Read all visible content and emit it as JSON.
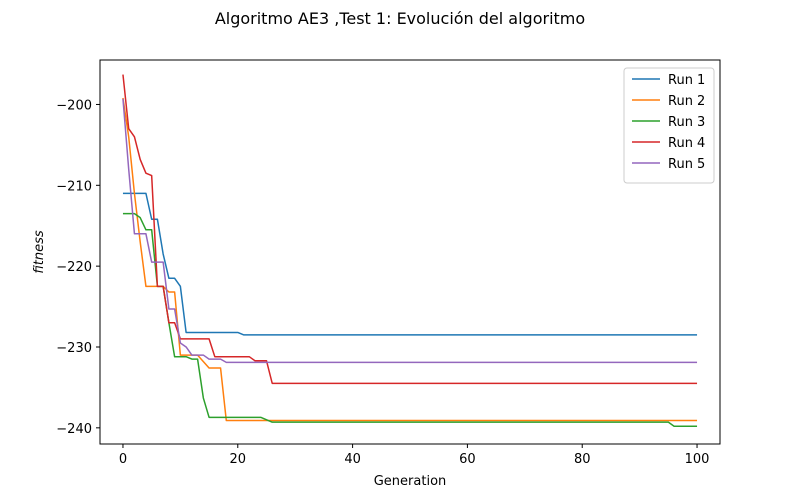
{
  "chart_data": {
    "type": "line",
    "title": "Algoritmo AE3 ,Test 1: Evolución del algoritmo",
    "xlabel": "Generation",
    "ylabel": "fitness",
    "xlim": [
      -4,
      104
    ],
    "ylim": [
      -242,
      -194.5
    ],
    "xticks": [
      0,
      20,
      40,
      60,
      80,
      100
    ],
    "yticks": [
      -200,
      -210,
      -220,
      -230,
      -240
    ],
    "xtick_labels": [
      "0",
      "20",
      "40",
      "60",
      "80",
      "100"
    ],
    "ytick_labels": [
      "−200",
      "−210",
      "−220",
      "−230",
      "−240"
    ],
    "grid": false,
    "legend": "top-right",
    "series": [
      {
        "name": "Run 1",
        "color": "#1f77b4",
        "points": [
          [
            0,
            -211
          ],
          [
            4,
            -211
          ],
          [
            5,
            -214.2
          ],
          [
            6,
            -214.2
          ],
          [
            7,
            -218.5
          ],
          [
            8,
            -221.5
          ],
          [
            9,
            -221.5
          ],
          [
            10,
            -222.5
          ],
          [
            11,
            -228.2
          ],
          [
            20,
            -228.2
          ],
          [
            21,
            -228.5
          ],
          [
            100,
            -228.5
          ]
        ]
      },
      {
        "name": "Run 2",
        "color": "#ff7f0e",
        "points": [
          [
            0,
            -199.2
          ],
          [
            1,
            -204
          ],
          [
            2,
            -211
          ],
          [
            3,
            -217
          ],
          [
            4,
            -222.5
          ],
          [
            6,
            -222.5
          ],
          [
            7,
            -222.5
          ],
          [
            8,
            -223.2
          ],
          [
            9,
            -223.2
          ],
          [
            10,
            -231
          ],
          [
            13,
            -231
          ],
          [
            15,
            -232.6
          ],
          [
            17,
            -232.6
          ],
          [
            18,
            -239.1
          ],
          [
            100,
            -239.1
          ]
        ]
      },
      {
        "name": "Run 3",
        "color": "#2ca02c",
        "points": [
          [
            0,
            -213.5
          ],
          [
            2,
            -213.5
          ],
          [
            3,
            -214
          ],
          [
            4,
            -215.5
          ],
          [
            5,
            -215.5
          ],
          [
            6,
            -222.5
          ],
          [
            7,
            -222.5
          ],
          [
            8,
            -227
          ],
          [
            9,
            -231.2
          ],
          [
            11,
            -231.2
          ],
          [
            12,
            -231.5
          ],
          [
            13,
            -231.5
          ],
          [
            14,
            -236.3
          ],
          [
            15,
            -238.7
          ],
          [
            24,
            -238.7
          ],
          [
            26,
            -239.3
          ],
          [
            95,
            -239.3
          ],
          [
            96,
            -239.8
          ],
          [
            100,
            -239.8
          ]
        ]
      },
      {
        "name": "Run 4",
        "color": "#d62728",
        "points": [
          [
            0,
            -196.3
          ],
          [
            1,
            -203
          ],
          [
            2,
            -204
          ],
          [
            3,
            -206.8
          ],
          [
            4,
            -208.5
          ],
          [
            5,
            -208.8
          ],
          [
            6,
            -222.5
          ],
          [
            7,
            -222.5
          ],
          [
            8,
            -227
          ],
          [
            9,
            -227
          ],
          [
            10,
            -229
          ],
          [
            15,
            -229
          ],
          [
            16,
            -231.2
          ],
          [
            22,
            -231.2
          ],
          [
            23,
            -231.7
          ],
          [
            25,
            -231.7
          ],
          [
            26,
            -234.5
          ],
          [
            100,
            -234.5
          ]
        ]
      },
      {
        "name": "Run 5",
        "color": "#9467bd",
        "points": [
          [
            0,
            -199.3
          ],
          [
            1,
            -208
          ],
          [
            2,
            -216
          ],
          [
            4,
            -216
          ],
          [
            5,
            -219.5
          ],
          [
            7,
            -219.5
          ],
          [
            8,
            -225.3
          ],
          [
            9,
            -225.3
          ],
          [
            10,
            -229.5
          ],
          [
            11,
            -230
          ],
          [
            12,
            -231
          ],
          [
            14,
            -231
          ],
          [
            15,
            -231.5
          ],
          [
            17,
            -231.5
          ],
          [
            18,
            -231.9
          ],
          [
            100,
            -231.9
          ]
        ]
      }
    ]
  }
}
